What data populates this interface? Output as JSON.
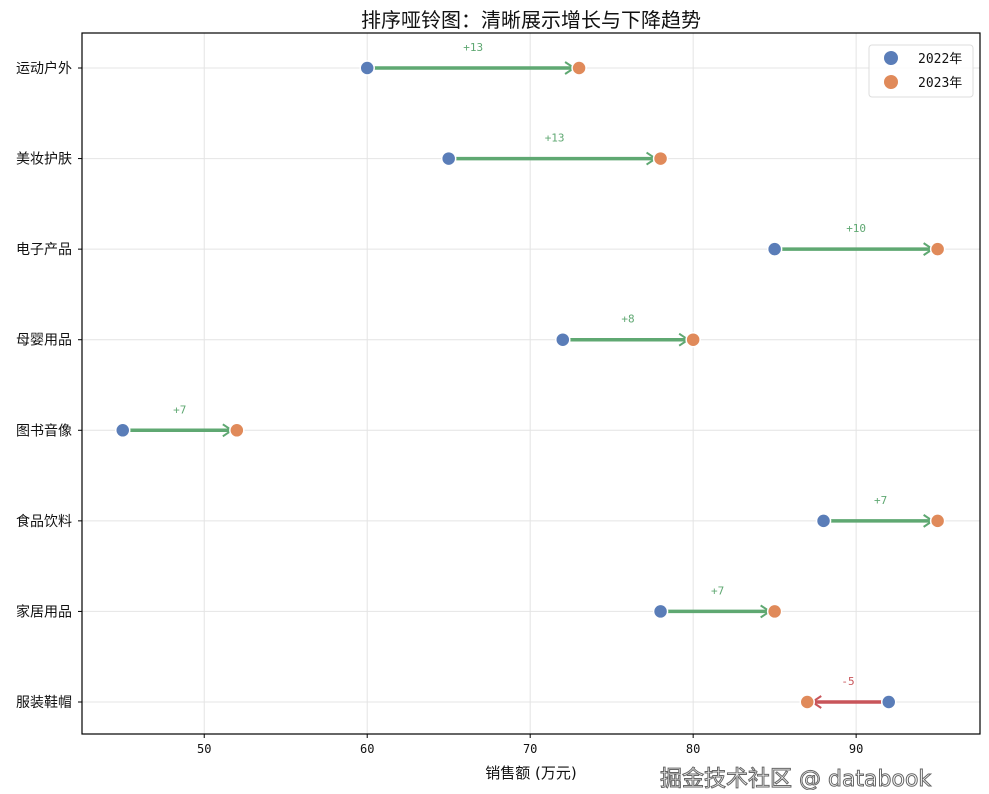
{
  "chart_data": {
    "type": "dumbbell",
    "title": "排序哑铃图：清晰展示增长与下降趋势",
    "xlabel": "销售额 (万元)",
    "ylabel": "",
    "xlim": [
      42.5,
      97.6
    ],
    "xticks": [
      50,
      60,
      70,
      80,
      90
    ],
    "grid": true,
    "legend_position": "top-right",
    "categories": [
      "运动户外",
      "美妆护肤",
      "电子产品",
      "母婴用品",
      "图书音像",
      "食品饮料",
      "家居用品",
      "服装鞋帽"
    ],
    "series": [
      {
        "name": "2022年",
        "color": "#5a7db8",
        "values": [
          60,
          65,
          85,
          72,
          45,
          88,
          78,
          92
        ]
      },
      {
        "name": "2023年",
        "color": "#e08a5a",
        "values": [
          73,
          78,
          95,
          80,
          52,
          95,
          85,
          87
        ]
      }
    ],
    "change_labels": [
      "+13",
      "+13",
      "+10",
      "+8",
      "+7",
      "+7",
      "+7",
      "-5"
    ],
    "increase_color": "#5fa872",
    "decrease_color": "#c8555a"
  },
  "watermark": "掘金技术社区 @ databook"
}
